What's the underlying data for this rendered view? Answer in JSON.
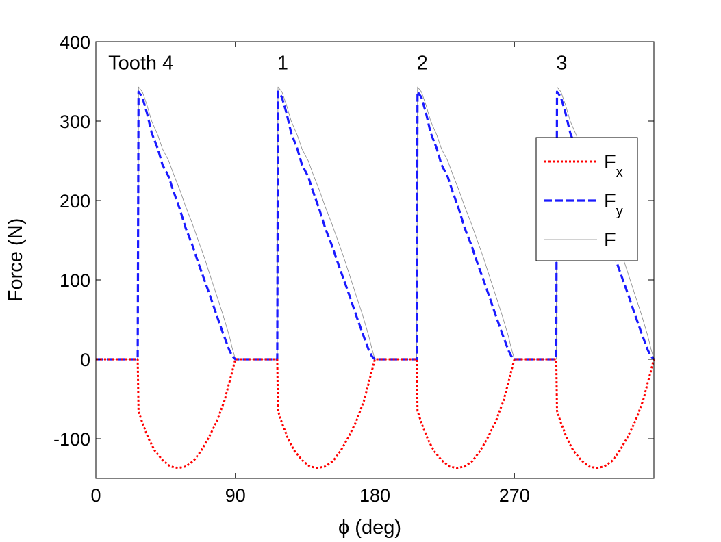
{
  "chart_data": {
    "type": "line",
    "xlabel": {
      "symbol": "ϕ",
      "text": " (deg)"
    },
    "ylabel": "Force (N)",
    "xlim": [
      0,
      360
    ],
    "ylim": [
      -150,
      400
    ],
    "xticks": [
      0,
      90,
      180,
      270
    ],
    "xtick_labels": [
      "0",
      "90",
      "180",
      "270"
    ],
    "yticks": [
      -100,
      0,
      100,
      200,
      300,
      400
    ],
    "ytick_labels": [
      "-100",
      "0",
      "100",
      "200",
      "300",
      "400"
    ],
    "grid": false,
    "legend_position": "right",
    "annotations": [
      {
        "text": "Tooth 4",
        "x": 8,
        "y": 365
      },
      {
        "text": "1",
        "x": 117,
        "y": 365
      },
      {
        "text": "2",
        "x": 207,
        "y": 365
      },
      {
        "text": "3",
        "x": 297,
        "y": 365
      }
    ],
    "series": [
      {
        "name": "F",
        "sub": "x",
        "color": "#ff0000",
        "style": "dotted",
        "x": [
          0,
          27,
          27.5,
          30,
          34,
          38,
          43,
          48,
          53,
          58,
          63,
          68,
          73,
          78,
          83,
          86,
          88,
          90,
          117,
          117.5,
          120,
          124,
          128,
          133,
          138,
          143,
          148,
          153,
          158,
          163,
          168,
          173,
          176,
          178,
          180,
          207,
          207.5,
          210,
          214,
          218,
          223,
          228,
          233,
          238,
          243,
          248,
          253,
          258,
          263,
          266,
          268,
          270,
          297,
          297.5,
          300,
          304,
          308,
          313,
          318,
          323,
          328,
          333,
          338,
          343,
          348,
          353,
          356,
          358,
          360
        ],
        "y": [
          0,
          0,
          -65,
          -80,
          -100,
          -115,
          -127,
          -135,
          -137,
          -135,
          -128,
          -115,
          -98,
          -78,
          -52,
          -30,
          -15,
          0,
          0,
          -65,
          -80,
          -100,
          -115,
          -127,
          -135,
          -137,
          -135,
          -128,
          -115,
          -98,
          -78,
          -52,
          -30,
          -15,
          0,
          0,
          -65,
          -80,
          -100,
          -115,
          -127,
          -135,
          -137,
          -135,
          -128,
          -115,
          -98,
          -78,
          -52,
          -30,
          -15,
          0,
          0,
          -65,
          -80,
          -100,
          -115,
          -127,
          -135,
          -137,
          -135,
          -128,
          -115,
          -98,
          -78,
          -52,
          -30,
          -15,
          0
        ]
      },
      {
        "name": "F",
        "sub": "y",
        "color": "#1a1aff",
        "style": "dashed",
        "x": [
          0,
          27,
          27.5,
          30,
          33,
          36,
          40,
          43,
          47,
          50,
          54,
          58,
          62,
          66,
          70,
          74,
          78,
          82,
          86,
          88,
          90,
          117,
          117.5,
          120,
          123,
          126,
          130,
          133,
          137,
          140,
          144,
          148,
          152,
          156,
          160,
          164,
          168,
          172,
          176,
          178,
          180,
          207,
          207.5,
          210,
          213,
          216,
          220,
          223,
          227,
          230,
          234,
          238,
          242,
          246,
          250,
          254,
          258,
          262,
          266,
          268,
          270,
          297,
          297.5,
          300,
          303,
          306,
          310,
          313,
          317,
          320,
          324,
          328,
          332,
          336,
          340,
          344,
          348,
          352,
          356,
          358,
          360
        ],
        "y": [
          0,
          0,
          337,
          330,
          310,
          285,
          265,
          245,
          230,
          212,
          190,
          165,
          145,
          122,
          100,
          78,
          55,
          33,
          12,
          4,
          0,
          0,
          337,
          330,
          310,
          285,
          265,
          245,
          230,
          212,
          190,
          165,
          145,
          122,
          100,
          78,
          55,
          33,
          12,
          4,
          0,
          0,
          337,
          330,
          310,
          285,
          265,
          245,
          230,
          212,
          190,
          165,
          145,
          122,
          100,
          78,
          55,
          33,
          12,
          4,
          0,
          0,
          337,
          330,
          310,
          285,
          265,
          245,
          230,
          212,
          190,
          165,
          145,
          122,
          100,
          78,
          55,
          33,
          12,
          4,
          0
        ]
      },
      {
        "name": "F",
        "sub": "",
        "color": "#888888",
        "style": "solid",
        "x": [
          0,
          27,
          27.5,
          30,
          33,
          36,
          40,
          43,
          47,
          50,
          54,
          58,
          62,
          66,
          70,
          74,
          78,
          82,
          86,
          88,
          90,
          117,
          117.5,
          120,
          123,
          126,
          130,
          133,
          137,
          140,
          144,
          148,
          152,
          156,
          160,
          164,
          168,
          172,
          176,
          178,
          180,
          207,
          207.5,
          210,
          213,
          216,
          220,
          223,
          227,
          230,
          234,
          238,
          242,
          246,
          250,
          254,
          258,
          262,
          266,
          268,
          270,
          297,
          297.5,
          300,
          303,
          306,
          310,
          313,
          317,
          320,
          324,
          328,
          332,
          336,
          340,
          344,
          348,
          352,
          356,
          358,
          360
        ],
        "y": [
          0,
          0,
          343,
          337,
          320,
          300,
          282,
          265,
          250,
          234,
          214,
          192,
          172,
          150,
          128,
          104,
          80,
          56,
          30,
          14,
          0,
          0,
          343,
          337,
          320,
          300,
          282,
          265,
          250,
          234,
          214,
          192,
          172,
          150,
          128,
          104,
          80,
          56,
          30,
          14,
          0,
          0,
          343,
          337,
          320,
          300,
          282,
          265,
          250,
          234,
          214,
          192,
          172,
          150,
          128,
          104,
          80,
          56,
          30,
          14,
          0,
          0,
          343,
          337,
          320,
          300,
          282,
          265,
          250,
          234,
          214,
          192,
          172,
          150,
          128,
          104,
          80,
          56,
          30,
          14,
          0
        ]
      }
    ]
  }
}
